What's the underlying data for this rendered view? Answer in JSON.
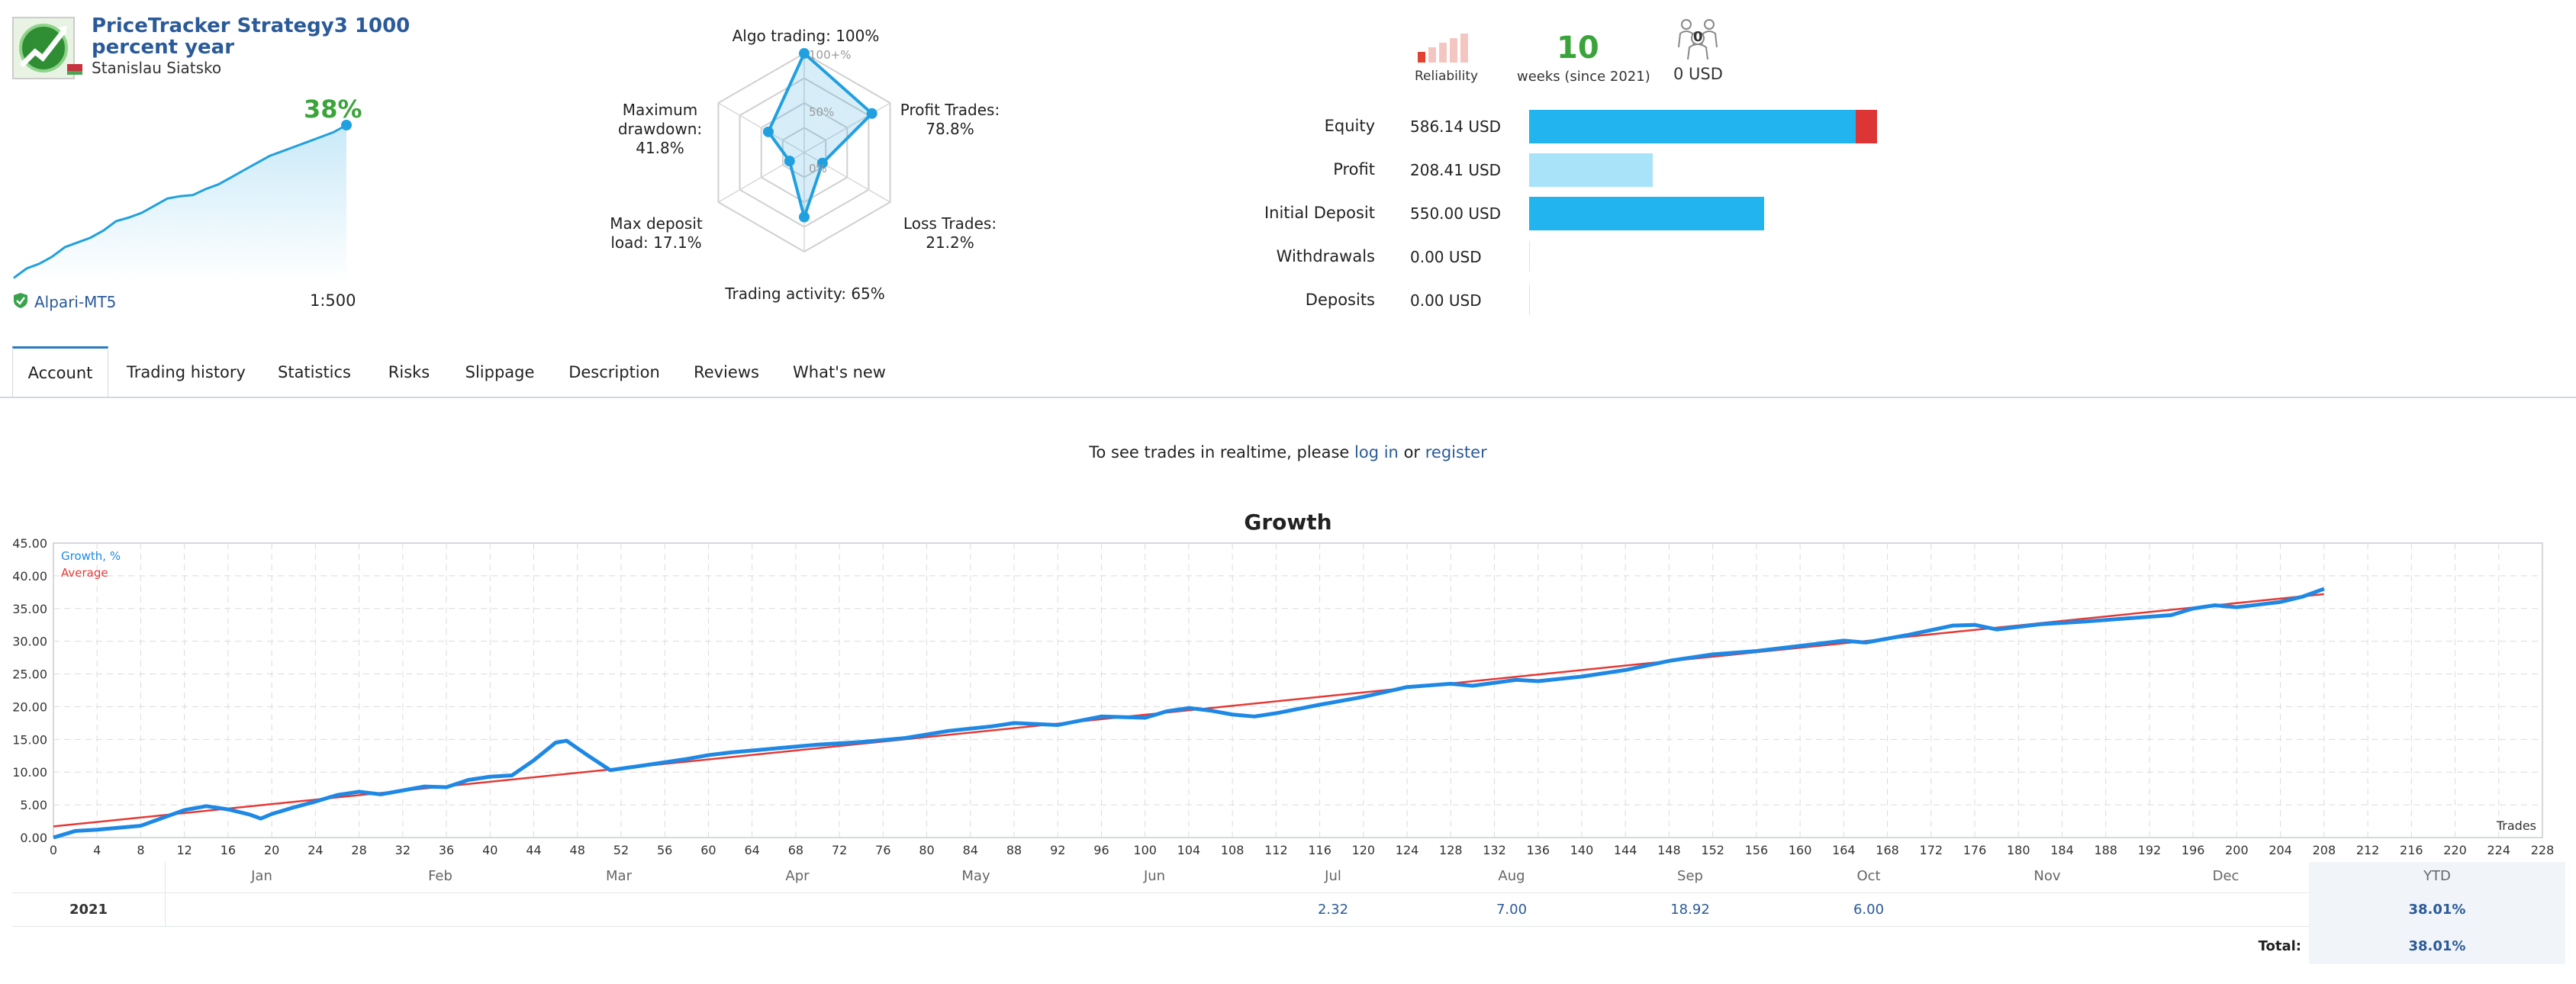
{
  "header": {
    "title": "PriceTracker Strategy3 1000 percent year",
    "title_line1": "PriceTracker Strategy3 1000",
    "title_line2": "percent year",
    "author": "Stanislau Siatsko",
    "growth_percent": "38%",
    "broker": "Alpari-MT5",
    "leverage": "1:500",
    "mini_chart": [
      0.5,
      4.5,
      6.5,
      9.5,
      13.5,
      15.5,
      17.5,
      20.5,
      24.5,
      26,
      28,
      31,
      34,
      35,
      35.5,
      38,
      40,
      43,
      46,
      49,
      52,
      54,
      56,
      58,
      60,
      62,
      65
    ]
  },
  "radar": {
    "algo_trading": "Algo trading: 100%",
    "profit_trades_line1": "Profit Trades:",
    "profit_trades_line2": "78.8%",
    "loss_trades_line1": "Loss Trades:",
    "loss_trades_line2": "21.2%",
    "trading_activity": "Trading activity: 65%",
    "max_deposit_line1": "Max deposit",
    "max_deposit_line2": "load: 17.1%",
    "max_drawdown_line1": "Maximum",
    "max_drawdown_line2": "drawdown:",
    "max_drawdown_line3": "41.8%",
    "tick_100": "100+%",
    "tick_50": "50%",
    "tick_0": "0%",
    "values": [
      1.0,
      0.788,
      0.212,
      0.65,
      0.171,
      0.418
    ]
  },
  "summary": {
    "reliability_label": "Reliability",
    "weeks_value": "10",
    "weeks_label": "weeks (since 2021)",
    "subscribers_count": "0",
    "subscribers_value": "0 USD"
  },
  "stats": {
    "equity_label": "Equity",
    "equity_value": "586.14 USD",
    "profit_label": "Profit",
    "profit_value": "208.41 USD",
    "initial_label": "Initial Deposit",
    "initial_value": "550.00 USD",
    "withdrawals_label": "Withdrawals",
    "withdrawals_value": "0.00 USD",
    "deposits_label": "Deposits",
    "deposits_value": "0.00 USD",
    "bars": {
      "max": 586.14,
      "equity_balance": 550.0,
      "profit": 208.41,
      "initial": 550.0
    },
    "colors": {
      "balance": "#21b4ee",
      "drawdown": "#dd3535",
      "profit": "#a9e3f9"
    }
  },
  "tabs": [
    {
      "label": "Account"
    },
    {
      "label": "Trading history"
    },
    {
      "label": "Statistics"
    },
    {
      "label": "Risks"
    },
    {
      "label": "Slippage"
    },
    {
      "label": "Description"
    },
    {
      "label": "Reviews"
    },
    {
      "label": "What's new"
    }
  ],
  "notice": {
    "before": "To see trades in realtime, please",
    "login": "log in",
    "or": "or",
    "register": "register"
  },
  "chart_data": {
    "type": "line",
    "title": "Growth",
    "xlabel": "Trades",
    "ylabel": "",
    "xlim": [
      0,
      228
    ],
    "ylim": [
      0,
      45
    ],
    "x_ticks": [
      0,
      4,
      8,
      12,
      16,
      20,
      24,
      28,
      32,
      36,
      40,
      44,
      48,
      52,
      56,
      60,
      64,
      68,
      72,
      76,
      80,
      84,
      88,
      92,
      96,
      100,
      104,
      108,
      112,
      116,
      120,
      124,
      128,
      132,
      136,
      140,
      144,
      148,
      152,
      156,
      160,
      164,
      168,
      172,
      176,
      180,
      184,
      188,
      192,
      196,
      200,
      204,
      208,
      212,
      216,
      220,
      224,
      228
    ],
    "y_ticks": [
      "0.00",
      "5.00",
      "10.00",
      "15.00",
      "20.00",
      "25.00",
      "30.00",
      "35.00",
      "40.00",
      "45.00"
    ],
    "grid": true,
    "legend": "top-left",
    "series": [
      {
        "name": "Growth, %",
        "color": "#1e88e5",
        "points": [
          [
            0,
            0
          ],
          [
            2,
            1.0
          ],
          [
            4,
            1.2
          ],
          [
            6,
            1.5
          ],
          [
            8,
            1.8
          ],
          [
            10,
            3.0
          ],
          [
            12,
            4.2
          ],
          [
            14,
            4.8
          ],
          [
            16,
            4.3
          ],
          [
            18,
            3.5
          ],
          [
            19,
            2.9
          ],
          [
            20,
            3.6
          ],
          [
            22,
            4.6
          ],
          [
            24,
            5.5
          ],
          [
            26,
            6.5
          ],
          [
            28,
            7.0
          ],
          [
            30,
            6.6
          ],
          [
            32,
            7.2
          ],
          [
            34,
            7.8
          ],
          [
            36,
            7.7
          ],
          [
            38,
            8.8
          ],
          [
            40,
            9.3
          ],
          [
            42,
            9.5
          ],
          [
            44,
            11.8
          ],
          [
            46,
            14.5
          ],
          [
            47,
            14.8
          ],
          [
            49,
            12.5
          ],
          [
            51,
            10.3
          ],
          [
            54,
            11.0
          ],
          [
            58,
            12.0
          ],
          [
            60,
            12.6
          ],
          [
            62,
            13.0
          ],
          [
            66,
            13.6
          ],
          [
            70,
            14.2
          ],
          [
            74,
            14.6
          ],
          [
            78,
            15.2
          ],
          [
            82,
            16.3
          ],
          [
            86,
            17.0
          ],
          [
            88,
            17.5
          ],
          [
            92,
            17.2
          ],
          [
            96,
            18.5
          ],
          [
            100,
            18.3
          ],
          [
            102,
            19.3
          ],
          [
            104,
            19.8
          ],
          [
            106,
            19.4
          ],
          [
            108,
            18.8
          ],
          [
            110,
            18.5
          ],
          [
            112,
            19.0
          ],
          [
            116,
            20.3
          ],
          [
            120,
            21.5
          ],
          [
            124,
            23.0
          ],
          [
            128,
            23.5
          ],
          [
            130,
            23.2
          ],
          [
            134,
            24.1
          ],
          [
            136,
            23.9
          ],
          [
            140,
            24.6
          ],
          [
            144,
            25.6
          ],
          [
            148,
            27.0
          ],
          [
            152,
            28.0
          ],
          [
            156,
            28.5
          ],
          [
            160,
            29.3
          ],
          [
            164,
            30.1
          ],
          [
            166,
            29.8
          ],
          [
            170,
            31.0
          ],
          [
            174,
            32.4
          ],
          [
            176,
            32.5
          ],
          [
            178,
            31.8
          ],
          [
            182,
            32.6
          ],
          [
            186,
            33.0
          ],
          [
            190,
            33.5
          ],
          [
            194,
            34.0
          ],
          [
            196,
            35.0
          ],
          [
            198,
            35.5
          ],
          [
            200,
            35.2
          ],
          [
            204,
            36.0
          ],
          [
            206,
            36.8
          ],
          [
            208,
            38.01
          ]
        ]
      },
      {
        "name": "Average",
        "color": "#e53935",
        "points": [
          [
            0,
            1.7
          ],
          [
            208,
            37.2
          ]
        ]
      }
    ],
    "months": [
      "Jan",
      "Feb",
      "Mar",
      "Apr",
      "May",
      "Jun",
      "Jul",
      "Aug",
      "Sep",
      "Oct",
      "Nov",
      "Dec"
    ]
  },
  "monthly": {
    "year": "2021",
    "values": [
      "",
      "",
      "",
      "",
      "",
      "",
      "2.32",
      "7.00",
      "18.92",
      "6.00",
      "",
      ""
    ],
    "ytd_label": "YTD",
    "ytd_value": "38.01%",
    "total_label": "Total:",
    "total_value": "38.01%"
  }
}
